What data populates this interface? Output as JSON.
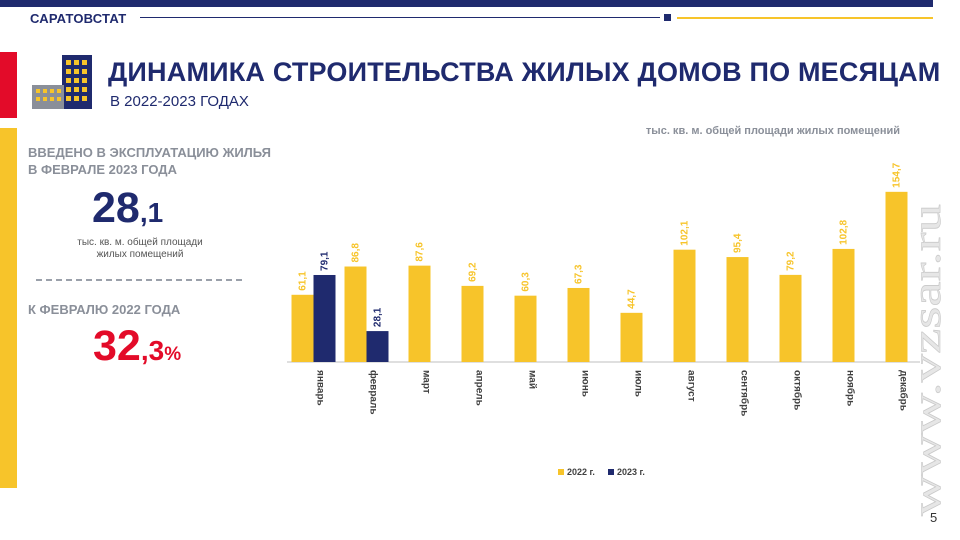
{
  "header": {
    "brand": "САРАТОВСТАТ",
    "title": "ДИНАМИКА СТРОИТЕЛЬСТВА ЖИЛЫХ ДОМОВ ПО МЕСЯЦАМ",
    "subtitle": "В 2022-2023 ГОДАХ"
  },
  "kpi": {
    "label_line1": "ВВЕДЕНО В ЭКСПЛУАТАЦИЮ ЖИЛЬЯ",
    "label_line2": "В ФЕВРАЛЕ 2023 ГОДА",
    "value_int": "28",
    "value_dec": ",1",
    "unit_line1": "тыс. кв. м. общей площади",
    "unit_line2": "жилых помещений",
    "compare_label": "К ФЕВРАЛЮ 2022 ГОДА",
    "compare_int": "32",
    "compare_dec": ",3",
    "compare_sign": "%"
  },
  "unit_note": "тыс. кв. м. общей площади жилых помещений",
  "watermark": "www.vzsar.ru",
  "page_number": "5",
  "colors": {
    "navy": "#1f2a6e",
    "yellow": "#f7c42a",
    "red": "#e30b29"
  },
  "chart_data": {
    "type": "bar",
    "categories": [
      "январь",
      "февраль",
      "март",
      "апрель",
      "май",
      "июнь",
      "июль",
      "август",
      "сентябрь",
      "октябрь",
      "ноябрь",
      "декабрь"
    ],
    "series": [
      {
        "name": "2022 г.",
        "color": "#f7c42a",
        "values": [
          61.1,
          86.8,
          87.6,
          69.2,
          60.3,
          67.3,
          44.7,
          102.1,
          95.4,
          79.2,
          102.8,
          154.7
        ],
        "labels": [
          "61,1",
          "86,8",
          "87,6",
          "69,2",
          "60,3",
          "67,3",
          "44,7",
          "102,1",
          "95,4",
          "79,2",
          "102,8",
          "154,7"
        ]
      },
      {
        "name": "2023 г.",
        "color": "#1f2a6e",
        "values": [
          79.1,
          28.1,
          null,
          null,
          null,
          null,
          null,
          null,
          null,
          null,
          null,
          null
        ],
        "labels": [
          "79,1",
          "28,1",
          "",
          "",
          "",
          "",
          "",
          "",
          "",
          "",
          "",
          ""
        ]
      }
    ],
    "ylim": [
      0,
      160
    ],
    "legend_position": "bottom",
    "grid": false
  }
}
